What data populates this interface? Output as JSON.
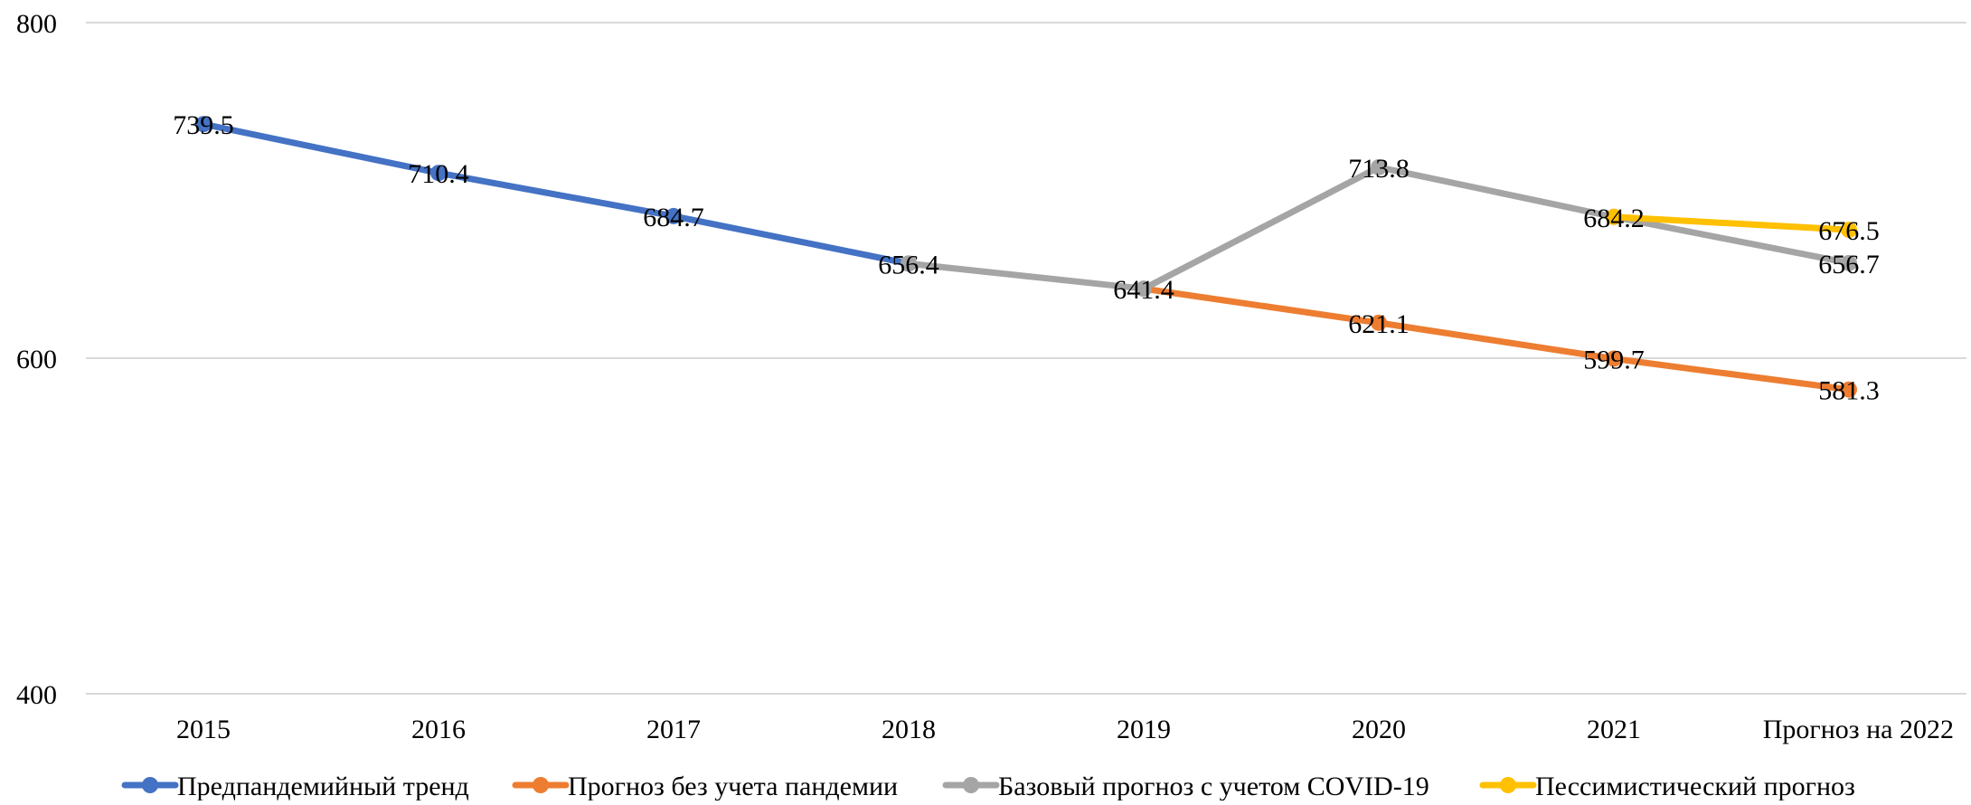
{
  "chart_data": {
    "type": "line",
    "title": "",
    "xlabel": "",
    "ylabel": "",
    "categories": [
      "2015",
      "2016",
      "2017",
      "2018",
      "2019",
      "2020",
      "2021",
      "Прогноз на 2022"
    ],
    "ylim": [
      400,
      800
    ],
    "yticks": [
      400,
      600,
      800
    ],
    "grid": true,
    "legend_position": "bottom",
    "series": [
      {
        "name": "Предпандемийный тренд",
        "color": "#4472C4",
        "values": [
          739.5,
          710.4,
          684.7,
          656.4,
          null,
          null,
          null,
          null
        ]
      },
      {
        "name": "Прогноз без учета пандемии",
        "color": "#ED7D31",
        "values": [
          null,
          null,
          null,
          null,
          641.4,
          621.1,
          599.7,
          581.3
        ]
      },
      {
        "name": "Базовый прогноз с учетом COVID-19",
        "color": "#A5A5A5",
        "values": [
          null,
          null,
          null,
          656.4,
          641.4,
          713.8,
          684.2,
          656.7
        ]
      },
      {
        "name": "Пессимистический прогноз",
        "color": "#FFC000",
        "values": [
          null,
          null,
          null,
          null,
          null,
          null,
          684.2,
          676.5
        ]
      }
    ],
    "data_labels": [
      {
        "category": "2015",
        "value": 739.5,
        "text": "739.5"
      },
      {
        "category": "2016",
        "value": 710.4,
        "text": "710.4"
      },
      {
        "category": "2017",
        "value": 684.7,
        "text": "684.7"
      },
      {
        "category": "2018",
        "value": 656.4,
        "text": "656.4"
      },
      {
        "category": "2019",
        "value": 641.4,
        "text": "641.4"
      },
      {
        "category": "2020",
        "value": 713.8,
        "text": "713.8"
      },
      {
        "category": "2020",
        "value": 621.1,
        "text": "621.1"
      },
      {
        "category": "2021",
        "value": 684.2,
        "text": "684.2"
      },
      {
        "category": "2021",
        "value": 599.7,
        "text": "599.7"
      },
      {
        "category": "Прогноз на 2022",
        "value": 676.5,
        "text": "676.5"
      },
      {
        "category": "Прогноз на 2022",
        "value": 656.7,
        "text": "656.7"
      },
      {
        "category": "Прогноз на 2022",
        "value": 581.3,
        "text": "581.3"
      }
    ]
  }
}
